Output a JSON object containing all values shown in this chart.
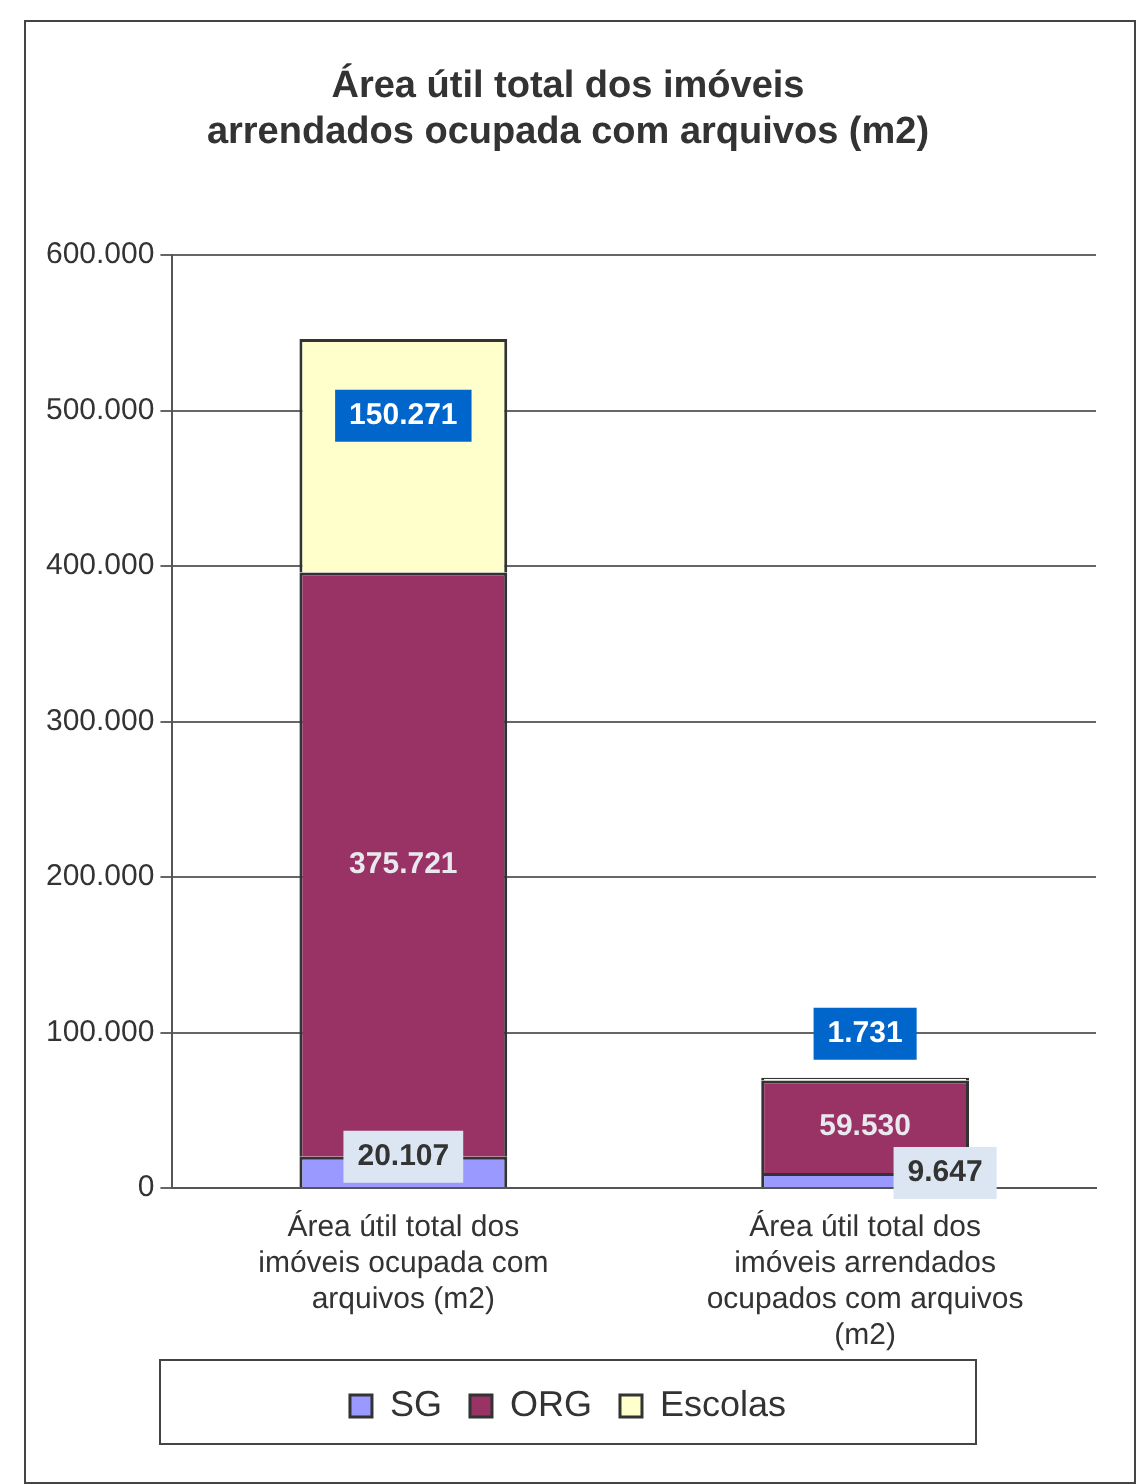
{
  "chart_data": {
    "type": "bar",
    "title": "Área útil total dos imóveis arrendados ocupada com arquivos (m2)",
    "stacked": true,
    "categories": [
      "Área útil total dos imóveis ocupada com arquivos (m2)",
      "Área útil total dos imóveis arrendados ocupados com arquivos (m2)"
    ],
    "series": [
      {
        "name": "SG",
        "color": "#9999ff",
        "values": [
          20107,
          9647
        ],
        "value_labels": [
          "20.107",
          "9.647"
        ]
      },
      {
        "name": "ORG",
        "color": "#993366",
        "values": [
          375721,
          59530
        ],
        "value_labels": [
          "375.721",
          "59.530"
        ]
      },
      {
        "name": "Escolas",
        "color": "#ffffcc",
        "values": [
          150271,
          1731
        ],
        "value_labels": [
          "150.271",
          "1.731"
        ]
      }
    ],
    "ylim": [
      0,
      600000
    ],
    "yticks": [
      0,
      {
        "value": 100000,
        "label": "100.000"
      },
      {
        "value": 200000,
        "label": "200.000"
      },
      {
        "value": 300000,
        "label": "300.000"
      },
      {
        "value": 400000,
        "label": "400.000"
      },
      {
        "value": 500000,
        "label": "500.000"
      },
      {
        "value": 600000,
        "label": "600.000"
      }
    ],
    "grid": "y",
    "legend": "bottom"
  }
}
